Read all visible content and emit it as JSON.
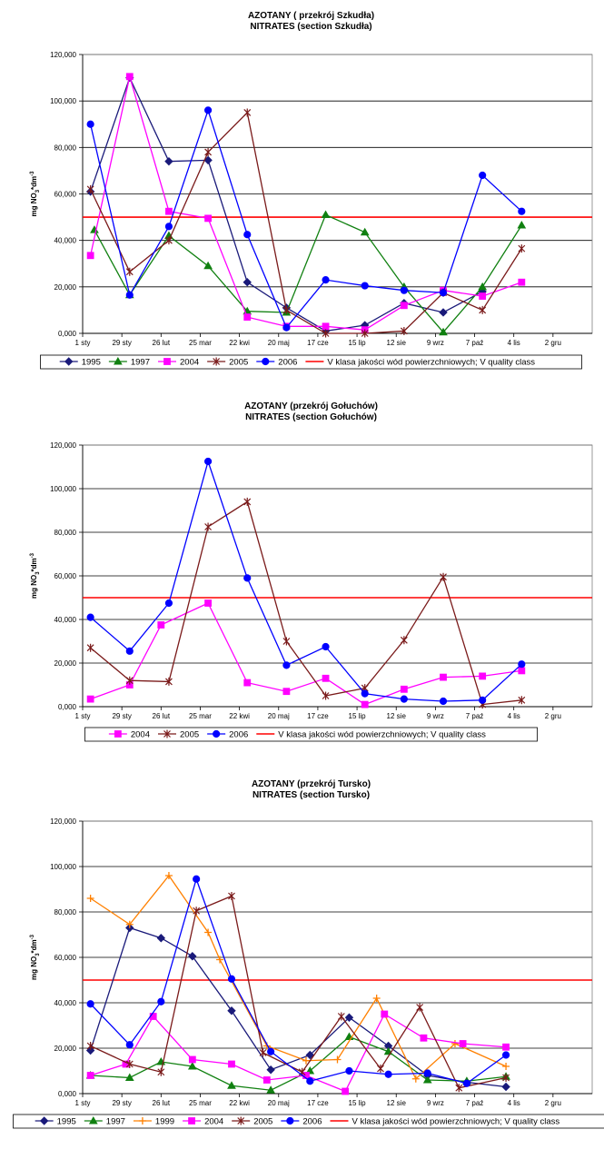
{
  "chart_data": [
    {
      "type": "line",
      "title": "AZOTANY ( przekrój Szkudła)",
      "subtitle": "NITRATES (section Szkudła)",
      "ylabel": "mg NO3*dm-3",
      "ylim": [
        0,
        120
      ],
      "ytick_labels": [
        "0,000",
        "20,000",
        "40,000",
        "60,000",
        "80,000",
        "100,000",
        "120,000"
      ],
      "categories": [
        "1 sty",
        "29 sty",
        "26 lut",
        "25 mar",
        "22 kwi",
        "20 maj",
        "17 cze",
        "15 lip",
        "12 sie",
        "9 wrz",
        "7 paź",
        "4 lis",
        "2 gru"
      ],
      "legend_position": "bottom",
      "threshold": {
        "name": "V klasa jakości wód powierzchniowych; V quality class",
        "value": 50,
        "color": "#ff0000"
      },
      "series": [
        {
          "name": "1995",
          "color": "#1a1a7a",
          "marker": "diamond",
          "points": [
            [
              0.2,
              61
            ],
            [
              1.2,
              110
            ],
            [
              2.2,
              74
            ],
            [
              3.2,
              74.5
            ],
            [
              4.2,
              22
            ],
            [
              5.2,
              11
            ],
            [
              6.2,
              1
            ],
            [
              7.2,
              3.5
            ],
            [
              8.2,
              13
            ],
            [
              9.2,
              9
            ],
            [
              10.2,
              18
            ]
          ]
        },
        {
          "name": "1997",
          "color": "#108010",
          "marker": "triangle",
          "points": [
            [
              0.3,
              44.5
            ],
            [
              1.2,
              16.5
            ],
            [
              2.2,
              42
            ],
            [
              3.2,
              29
            ],
            [
              4.2,
              9.5
            ],
            [
              5.2,
              9
            ],
            [
              6.2,
              51
            ],
            [
              7.2,
              43.5
            ],
            [
              8.2,
              20
            ],
            [
              9.2,
              0.5
            ],
            [
              10.2,
              20
            ],
            [
              11.2,
              46.5
            ]
          ]
        },
        {
          "name": "2004",
          "color": "#ff00ff",
          "marker": "square",
          "points": [
            [
              0.2,
              33.5
            ],
            [
              1.2,
              110.5
            ],
            [
              2.2,
              52.5
            ],
            [
              3.2,
              49.5
            ],
            [
              4.2,
              7
            ],
            [
              5.2,
              3
            ],
            [
              6.2,
              3
            ],
            [
              7.2,
              1.5
            ],
            [
              8.2,
              12
            ],
            [
              9.2,
              18.5
            ],
            [
              10.2,
              16
            ],
            [
              11.2,
              22
            ]
          ]
        },
        {
          "name": "2005",
          "color": "#7a1a1a",
          "marker": "star",
          "points": [
            [
              0.2,
              62
            ],
            [
              1.2,
              26.5
            ],
            [
              2.2,
              40
            ],
            [
              3.2,
              78
            ],
            [
              4.2,
              95
            ],
            [
              5.2,
              10
            ],
            [
              6.2,
              0
            ],
            [
              7.2,
              0
            ],
            [
              8.2,
              1
            ],
            [
              9.2,
              17.5
            ],
            [
              10.2,
              10
            ],
            [
              11.2,
              36.5
            ]
          ]
        },
        {
          "name": "2006",
          "color": "#0000ff",
          "marker": "circle",
          "points": [
            [
              0.2,
              90
            ],
            [
              1.2,
              16.5
            ],
            [
              2.2,
              46
            ],
            [
              3.2,
              96
            ],
            [
              4.2,
              42.5
            ],
            [
              5.2,
              2.5
            ],
            [
              6.2,
              23
            ],
            [
              7.2,
              20.5
            ],
            [
              8.2,
              18.5
            ],
            [
              9.2,
              17.5
            ],
            [
              10.2,
              68
            ],
            [
              11.2,
              52.5
            ]
          ]
        }
      ]
    },
    {
      "type": "line",
      "title": "AZOTANY (przekrój Gołuchów)",
      "subtitle": "NITRATES (section Gołuchów)",
      "ylabel": "mg NO3*dm-3",
      "ylim": [
        0,
        120
      ],
      "ytick_labels": [
        "0,000",
        "20,000",
        "40,000",
        "60,000",
        "80,000",
        "100,000",
        "120,000"
      ],
      "categories": [
        "1 sty",
        "29 sty",
        "26 lut",
        "25 mar",
        "22 kwi",
        "20 maj",
        "17 cze",
        "15 lip",
        "12 sie",
        "9 wrz",
        "7 paź",
        "4 lis",
        "2 gru"
      ],
      "legend_position": "bottom",
      "threshold": {
        "name": "V klasa jakości wód powierzchniowych; V quality class",
        "value": 50,
        "color": "#ff0000"
      },
      "series": [
        {
          "name": "2004",
          "color": "#ff00ff",
          "marker": "square",
          "points": [
            [
              0.2,
              3.5
            ],
            [
              1.2,
              10
            ],
            [
              2.0,
              37.5
            ],
            [
              3.2,
              47.5
            ],
            [
              4.2,
              11
            ],
            [
              5.2,
              7
            ],
            [
              6.2,
              13
            ],
            [
              7.2,
              1
            ],
            [
              8.2,
              8
            ],
            [
              9.2,
              13.5
            ],
            [
              10.2,
              14
            ],
            [
              11.2,
              16.5
            ]
          ]
        },
        {
          "name": "2005",
          "color": "#7a1a1a",
          "marker": "star",
          "points": [
            [
              0.2,
              27
            ],
            [
              1.2,
              12
            ],
            [
              2.2,
              11.5
            ],
            [
              3.2,
              82.5
            ],
            [
              4.2,
              94
            ],
            [
              5.2,
              30
            ],
            [
              6.2,
              5
            ],
            [
              7.2,
              8.5
            ],
            [
              8.2,
              30.5
            ],
            [
              9.2,
              59.5
            ],
            [
              10.2,
              1
            ],
            [
              11.2,
              3
            ]
          ]
        },
        {
          "name": "2006",
          "color": "#0000ff",
          "marker": "circle",
          "points": [
            [
              0.2,
              41
            ],
            [
              1.2,
              25.5
            ],
            [
              2.2,
              47.5
            ],
            [
              3.2,
              112.5
            ],
            [
              4.2,
              59
            ],
            [
              5.2,
              19
            ],
            [
              6.2,
              27.5
            ],
            [
              7.2,
              6
            ],
            [
              8.2,
              3.5
            ],
            [
              9.2,
              2.5
            ],
            [
              10.2,
              3
            ],
            [
              11.2,
              19.5
            ]
          ]
        }
      ]
    },
    {
      "type": "line",
      "title": "AZOTANY (przekrój Tursko)",
      "subtitle": "NITRATES (section Tursko)",
      "ylabel": "mg NO3*dm-3",
      "ylim": [
        0,
        120
      ],
      "ytick_labels": [
        "0,000",
        "20,000",
        "40,000",
        "60,000",
        "80,000",
        "100,000",
        "120,000"
      ],
      "categories": [
        "1 sty",
        "29 sty",
        "26 lut",
        "25 mar",
        "22 kwi",
        "20 maj",
        "17 cze",
        "15 lip",
        "12 sie",
        "9 wrz",
        "7 paź",
        "4 lis",
        "2 gru"
      ],
      "legend_position": "bottom",
      "threshold": {
        "name": "V klasa jakości wód powierzchniowych; V quality class",
        "value": 50,
        "color": "#ff0000"
      },
      "series": [
        {
          "name": "1995",
          "color": "#1a1a7a",
          "marker": "diamond",
          "points": [
            [
              0.2,
              19
            ],
            [
              1.2,
              73
            ],
            [
              2.0,
              68.5
            ],
            [
              2.8,
              60.5
            ],
            [
              3.8,
              36.5
            ],
            [
              4.8,
              10.5
            ],
            [
              5.8,
              17
            ],
            [
              6.8,
              33.5
            ],
            [
              7.8,
              21
            ],
            [
              8.8,
              8
            ],
            [
              9.8,
              5
            ],
            [
              10.8,
              3
            ]
          ]
        },
        {
          "name": "1997",
          "color": "#108010",
          "marker": "triangle",
          "points": [
            [
              0.2,
              8
            ],
            [
              1.2,
              7
            ],
            [
              2.0,
              14
            ],
            [
              2.8,
              12
            ],
            [
              3.8,
              3.5
            ],
            [
              4.8,
              1.5
            ],
            [
              5.8,
              10
            ],
            [
              6.8,
              25
            ],
            [
              7.8,
              18.5
            ],
            [
              8.8,
              6
            ],
            [
              9.8,
              5.5
            ],
            [
              10.8,
              7.5
            ]
          ]
        },
        {
          "name": "1999",
          "color": "#ff8000",
          "marker": "plus",
          "points": [
            [
              0.2,
              86
            ],
            [
              1.2,
              74.5
            ],
            [
              2.2,
              96
            ],
            [
              3.2,
              71
            ],
            [
              3.5,
              59
            ],
            [
              4.7,
              21
            ],
            [
              5.7,
              14.5
            ],
            [
              6.5,
              15
            ],
            [
              7.5,
              42
            ],
            [
              8.5,
              6.5
            ],
            [
              9.5,
              22
            ],
            [
              10.8,
              12
            ]
          ]
        },
        {
          "name": "2004",
          "color": "#ff00ff",
          "marker": "square",
          "points": [
            [
              0.2,
              8
            ],
            [
              1.1,
              13
            ],
            [
              1.8,
              34
            ],
            [
              2.8,
              15
            ],
            [
              3.8,
              13
            ],
            [
              4.7,
              6
            ],
            [
              5.7,
              8
            ],
            [
              6.7,
              1
            ],
            [
              7.7,
              35
            ],
            [
              8.7,
              24.5
            ],
            [
              9.7,
              22
            ],
            [
              10.8,
              20.5
            ]
          ]
        },
        {
          "name": "2005",
          "color": "#7a1a1a",
          "marker": "star",
          "points": [
            [
              0.2,
              21
            ],
            [
              1.2,
              13
            ],
            [
              2.0,
              9.5
            ],
            [
              2.9,
              80.5
            ],
            [
              3.8,
              87
            ],
            [
              4.6,
              18
            ],
            [
              5.6,
              9.5
            ],
            [
              6.6,
              34
            ],
            [
              7.6,
              11
            ],
            [
              8.6,
              38
            ],
            [
              9.6,
              2.5
            ],
            [
              10.8,
              7
            ]
          ]
        },
        {
          "name": "2006",
          "color": "#0000ff",
          "marker": "circle",
          "points": [
            [
              0.2,
              39.5
            ],
            [
              1.2,
              21.5
            ],
            [
              2.0,
              40.5
            ],
            [
              2.9,
              94.5
            ],
            [
              3.8,
              50.5
            ],
            [
              4.8,
              18.5
            ],
            [
              5.8,
              5.5
            ],
            [
              6.8,
              10
            ],
            [
              7.8,
              8.5
            ],
            [
              8.8,
              9
            ],
            [
              9.8,
              4.5
            ],
            [
              10.8,
              17
            ]
          ]
        }
      ]
    }
  ]
}
